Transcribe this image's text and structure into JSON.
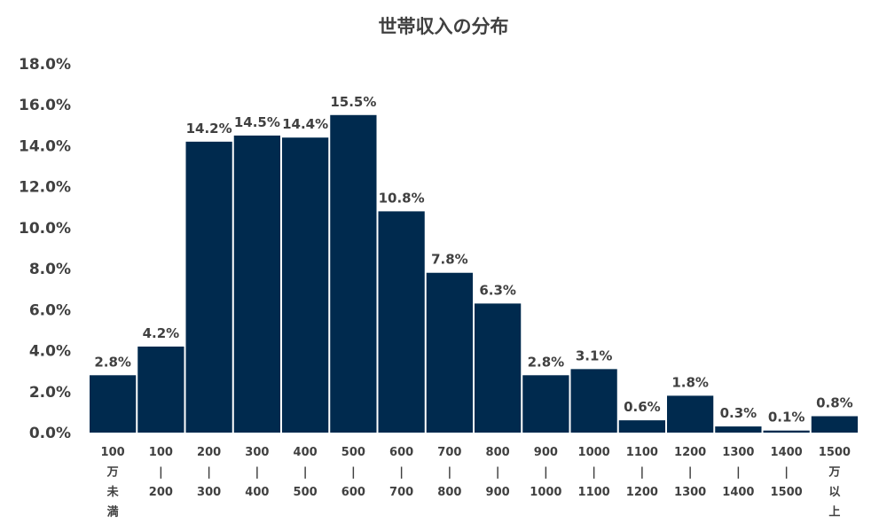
{
  "chart_data": {
    "type": "bar",
    "title": "世帯収入の分布",
    "xlabel": "",
    "ylabel": "",
    "ylim": [
      0,
      18
    ],
    "y_ticks": [
      "0.0%",
      "2.0%",
      "4.0%",
      "6.0%",
      "8.0%",
      "10.0%",
      "12.0%",
      "14.0%",
      "16.0%",
      "18.0%"
    ],
    "grid": false,
    "legend": "none",
    "bar_color": "#002A4E",
    "categories": [
      [
        "100",
        "万",
        "未",
        "満"
      ],
      [
        "100",
        "|",
        "200"
      ],
      [
        "200",
        "|",
        "300"
      ],
      [
        "300",
        "|",
        "400"
      ],
      [
        "400",
        "|",
        "500"
      ],
      [
        "500",
        "|",
        "600"
      ],
      [
        "600",
        "|",
        "700"
      ],
      [
        "700",
        "|",
        "800"
      ],
      [
        "800",
        "|",
        "900"
      ],
      [
        "900",
        "|",
        "1000"
      ],
      [
        "1000",
        "|",
        "1100"
      ],
      [
        "1100",
        "|",
        "1200"
      ],
      [
        "1200",
        "|",
        "1300"
      ],
      [
        "1300",
        "|",
        "1400"
      ],
      [
        "1400",
        "|",
        "1500"
      ],
      [
        "1500",
        "万",
        "以",
        "上"
      ]
    ],
    "values": [
      2.8,
      4.2,
      14.2,
      14.5,
      14.4,
      15.5,
      10.8,
      7.8,
      6.3,
      2.8,
      3.1,
      0.6,
      1.8,
      0.3,
      0.1,
      0.8
    ],
    "data_labels": [
      "2.8%",
      "4.2%",
      "14.2%",
      "14.5%",
      "14.4%",
      "15.5%",
      "10.8%",
      "7.8%",
      "6.3%",
      "2.8%",
      "3.1%",
      "0.6%",
      "1.8%",
      "0.3%",
      "0.1%",
      "0.8%"
    ]
  }
}
